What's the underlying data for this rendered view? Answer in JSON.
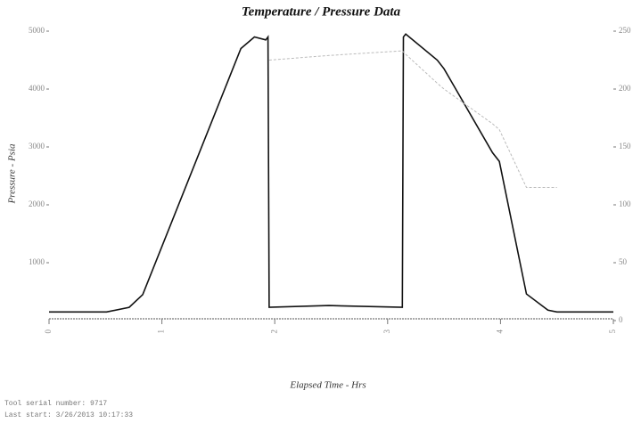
{
  "chart_data": {
    "type": "line",
    "title": "Temperature / Pressure Data",
    "x_label": "Elapsed Time - Hrs",
    "y_label": "Pressure - Psia",
    "x": [
      0,
      0.51,
      0.71,
      0.83,
      1.7,
      1.82,
      1.92,
      1.94,
      1.95,
      2.48,
      3.13,
      3.14,
      3.16,
      3.44,
      3.5,
      3.93,
      3.99,
      4.23,
      4.42,
      4.5,
      5.0
    ],
    "series": [
      {
        "name": "Pressure",
        "color": "#111111",
        "values": [
          150,
          150,
          230,
          450,
          4700,
          4900,
          4850,
          4900,
          230,
          260,
          230,
          4900,
          4950,
          4500,
          4350,
          2900,
          2750,
          460,
          180,
          150,
          150
        ]
      },
      {
        "name": "Temperature",
        "color": "#bbbbbb",
        "axis": "y2",
        "values": [
          null,
          null,
          null,
          null,
          null,
          null,
          null,
          null,
          225,
          229,
          233,
          232,
          230,
          205,
          200,
          170,
          165,
          115,
          115,
          115,
          null
        ]
      }
    ],
    "xlim": [
      0,
      5
    ],
    "xticks": [
      0,
      1,
      2,
      3,
      4,
      5
    ],
    "ylim": [
      0,
      5000
    ],
    "yticks": [
      1000,
      2000,
      3000,
      4000,
      5000
    ],
    "y2lim": [
      0,
      250
    ],
    "y2ticks": [
      0,
      50,
      100,
      150,
      200,
      250
    ],
    "footer": [
      "Tool serial number: 9717",
      "Last start: 3/26/2013 10:17:33"
    ]
  }
}
